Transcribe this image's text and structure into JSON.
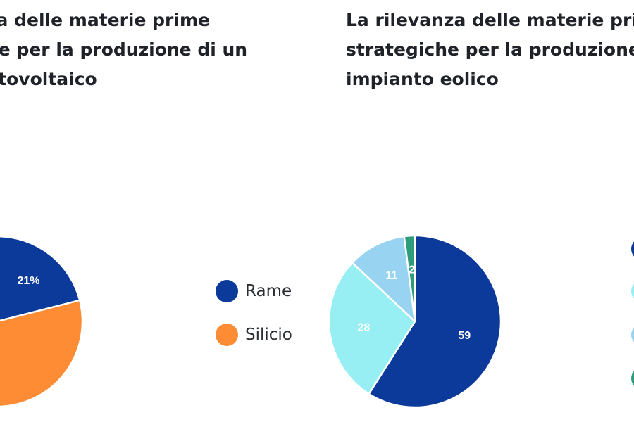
{
  "chart_data": [
    {
      "type": "pie",
      "title_lines": [
        "za delle materie prime",
        "he per la produzione di un",
        "otovoltaico"
      ],
      "slices": [
        {
          "label": "Rame",
          "value": 21,
          "display": "21%",
          "color": "#0b3a9a"
        },
        {
          "label": "Silicio",
          "value": 79,
          "display": "",
          "color": "#fd8c35"
        }
      ],
      "legend": [
        {
          "label": "Rame",
          "color": "#0b3a9a"
        },
        {
          "label": "Silicio",
          "color": "#fd8c35"
        }
      ]
    },
    {
      "type": "pie",
      "title_lines": [
        "La rilevanza delle materie prim",
        "strategiche per la produzione",
        "impianto eolico"
      ],
      "slices": [
        {
          "label": "",
          "value": 59,
          "display": "59",
          "color": "#0b3a9a"
        },
        {
          "label": "",
          "value": 28,
          "display": "28",
          "color": "#97eef3"
        },
        {
          "label": "",
          "value": 11,
          "display": "11",
          "color": "#99d3f2"
        },
        {
          "label": "",
          "value": 2,
          "display": "2",
          "color": "#2e9b7a"
        }
      ],
      "legend": [
        {
          "label": "",
          "color": "#0b3a9a"
        },
        {
          "label": "",
          "color": "#97eef3"
        },
        {
          "label": "",
          "color": "#99d3f2"
        },
        {
          "label": "",
          "color": "#2e9b7a"
        }
      ]
    }
  ]
}
